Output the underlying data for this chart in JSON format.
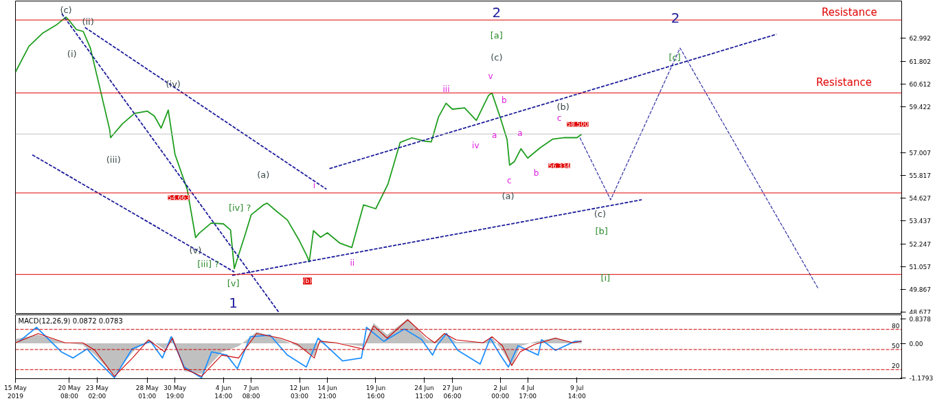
{
  "chart_data": [
    {
      "type": "line",
      "xlim": [
        "2019-05-15T00:00",
        "2019-08-10T17:30"
      ],
      "ylim": [
        48.6,
        64.95
      ],
      "tick_labels": "y",
      "grid": false,
      "yticks": [
        62.992,
        61.802,
        60.612,
        59.422,
        57.007,
        55.817,
        54.627,
        53.437,
        52.247,
        51.057,
        49.867,
        48.677
      ],
      "series": [
        {
          "color": "#1f9e1f",
          "x": [
            "2019-05-15T00:00",
            "2019-05-16T08:00",
            "2019-05-17T16:00",
            "2019-05-19T00:00",
            "2019-05-20T00:00",
            "2019-05-20T08:00",
            "2019-05-21T01:00",
            "2019-05-21T17:00",
            "2019-05-22T10:00",
            "2019-05-23T02:00",
            "2019-05-24T08:00",
            "2019-05-24T10:00",
            "2019-05-25T14:00",
            "2019-05-26T19:00",
            "2019-05-28T01:00",
            "2019-05-28T18:00",
            "2019-05-29T10:00",
            "2019-05-30T03:00",
            "2019-05-30T19:00",
            "2019-06-01T00:00",
            "2019-06-01T20:00",
            "2019-06-02T05:00",
            "2019-06-03T09:00",
            "2019-06-04T14:00",
            "2019-06-05T07:00",
            "2019-06-05T16:00",
            "2019-06-05T23:00",
            "2019-06-06T16:00",
            "2019-06-07T08:00",
            "2019-06-08T13:00",
            "2019-06-08T22:00",
            "2019-06-09T18:00",
            "2019-06-10T22:00",
            "2019-06-12T03:00",
            "2019-06-12T20:00",
            "2019-06-13T02:00",
            "2019-06-13T12:00",
            "2019-06-14T05:00",
            "2019-06-14T21:00",
            "2019-06-16T02:00",
            "2019-06-17T07:00",
            "2019-06-18T11:00",
            "2019-06-19T16:00",
            "2019-06-20T21:00",
            "2019-06-22T02:00",
            "2019-06-23T06:00",
            "2019-06-24T11:00",
            "2019-06-25T04:00",
            "2019-06-25T21:00",
            "2019-06-26T15:00",
            "2019-06-27T06:00",
            "2019-06-28T11:00",
            "2019-06-29T15:00",
            "2019-06-30T20:00",
            "2019-07-01T04:00",
            "2019-07-02T00:00",
            "2019-07-02T16:00",
            "2019-07-02T22:00",
            "2019-07-03T09:00",
            "2019-07-04T01:00",
            "2019-07-04T17:00",
            "2019-07-05T22:00",
            "2019-07-07T04:00",
            "2019-07-08T09:00",
            "2019-07-09T14:00",
            "2019-07-10T01:00"
          ],
          "values": [
            61.23,
            62.58,
            63.26,
            63.68,
            64.11,
            63.92,
            63.45,
            63.36,
            62.49,
            61.01,
            58.2,
            57.8,
            58.52,
            59.07,
            59.19,
            58.93,
            58.3,
            59.24,
            56.93,
            55.1,
            52.57,
            52.81,
            53.33,
            53.29,
            52.97,
            50.95,
            51.45,
            52.61,
            53.76,
            54.28,
            54.37,
            53.99,
            53.49,
            52.39,
            51.63,
            51.31,
            52.93,
            52.59,
            52.82,
            52.29,
            52.05,
            54.28,
            54.08,
            55.37,
            57.55,
            57.79,
            57.62,
            57.58,
            58.88,
            59.6,
            59.29,
            59.36,
            58.7,
            60.01,
            60.14,
            58.84,
            57.7,
            56.36,
            56.54,
            57.22,
            56.73,
            57.26,
            57.72,
            57.8,
            57.8,
            57.98
          ]
        },
        {
          "color": "#1c1c9c",
          "line_style": "dashed",
          "x": [
            "2019-05-19T14:00",
            "2019-06-10T01:00"
          ],
          "values": [
            64.29,
            48.68
          ]
        },
        {
          "color": "#1c1c9c",
          "line_style": "dashed",
          "x": [
            "2019-05-21T21:00",
            "2019-06-14T19:00"
          ],
          "values": [
            63.57,
            55.1
          ]
        },
        {
          "color": "#1c1c9c",
          "line_style": "dashed",
          "x": [
            "2019-05-16T16:00",
            "2019-06-05T16:00"
          ],
          "values": [
            56.9,
            50.77
          ]
        },
        {
          "color": "#1c1c9c",
          "line_style": "dashed",
          "x": [
            "2019-06-05T11:00",
            "2019-07-16T00:00"
          ],
          "values": [
            50.59,
            54.55
          ]
        },
        {
          "color": "#1c1c9c",
          "line_style": "dashed",
          "x": [
            "2019-06-15T02:00",
            "2019-07-29T08:00"
          ],
          "values": [
            56.18,
            63.21
          ]
        },
        {
          "color": "#1c1c9c",
          "line_style": "dashed",
          "x": [
            "2019-07-09T21:00",
            "2019-07-12T22:00",
            "2019-07-19T19:00",
            "2019-08-02T12:00"
          ],
          "values": [
            57.8,
            54.55,
            62.49,
            49.87
          ]
        }
      ],
      "ref_lines": [
        {
          "axis": "y",
          "value": 63.957,
          "color": "#e00000"
        },
        {
          "axis": "y",
          "value": 60.143,
          "color": "#e00000"
        },
        {
          "axis": "y",
          "value": 57.991,
          "color": "#c0c0c0"
        },
        {
          "axis": "y",
          "value": 54.908,
          "color": "#e00000"
        },
        {
          "axis": "y",
          "value": 50.641,
          "color": "#e00000"
        }
      ],
      "annotations": [
        "(c)",
        "(i)",
        "(ii)",
        "(iii)",
        "(iv)",
        "54.663",
        "(v)",
        "[iii] ?",
        "[iv] ?",
        "[v]",
        "1",
        "(a)",
        "(b)",
        "i",
        "ii",
        "iii",
        "iv",
        "v",
        "a",
        "b",
        "c",
        "(a)",
        "a",
        "b",
        "56.334",
        "c",
        "(b)",
        "58.500",
        "(c)",
        "[b]",
        "[i]",
        "2",
        "[a]",
        "(c)",
        "2",
        "[c]",
        "Resistance",
        "Resistance"
      ]
    },
    {
      "type": "line",
      "title": "MACD(12,26,9) 0.0872 0.0783",
      "xlim": [
        "2019-05-15T00:00",
        "2019-08-10T17:30"
      ],
      "ylim": [
        -1.21,
        0.98
      ],
      "grid": false,
      "xticks": [
        {
          "value": "2019-05-15T00:00",
          "label": "15 May 2019"
        },
        {
          "value": "2019-05-20T08:00",
          "label": "20 May 08:00"
        },
        {
          "value": "2019-05-23T02:00",
          "label": "23 May 02:00"
        },
        {
          "value": "2019-05-28T01:00",
          "label": "28 May 01:00"
        },
        {
          "value": "2019-05-30T19:00",
          "label": "30 May 19:00"
        },
        {
          "value": "2019-06-04T14:00",
          "label": "4 Jun 14:00"
        },
        {
          "value": "2019-06-07T08:00",
          "label": "7 Jun 08:00"
        },
        {
          "value": "2019-06-12T03:00",
          "label": "12 Jun 03:00"
        },
        {
          "value": "2019-06-14T21:00",
          "label": "14 Jun 21:00"
        },
        {
          "value": "2019-06-19T16:00",
          "label": "19 Jun 16:00"
        },
        {
          "value": "2019-06-24T11:00",
          "label": "24 Jun 11:00"
        },
        {
          "value": "2019-06-27T06:00",
          "label": "27 Jun 06:00"
        },
        {
          "value": "2019-07-02T00:00",
          "label": "2 Jul 00:00"
        },
        {
          "value": "2019-07-04T17:00",
          "label": "4 Jul 17:00"
        },
        {
          "value": "2019-07-09T14:00",
          "label": "9 Jul 14:00"
        }
      ],
      "yticks": [
        {
          "value": 0.8378,
          "label": "0.8378"
        },
        {
          "value": 0,
          "label": "0.00"
        },
        {
          "value": -1.1793,
          "label": "-1.1793"
        }
      ],
      "series": [
        {
          "type": "area",
          "color": "#c0c0c0",
          "x": [
            "2019-05-15T00:00",
            "2019-05-17T06:00",
            "2019-05-19T22:00",
            "2019-05-21T16:00",
            "2019-05-22T21:00",
            "2019-05-24T19:00",
            "2019-05-26T14:00",
            "2019-05-28T04:00",
            "2019-05-29T18:00",
            "2019-05-30T13:00",
            "2019-05-31T17:00",
            "2019-06-02T10:00",
            "2019-06-04T10:00",
            "2019-06-06T02:00",
            "2019-06-07T21:00",
            "2019-06-10T06:00",
            "2019-06-11T22:00",
            "2019-06-13T14:00",
            "2019-06-14T03:00",
            "2019-06-15T17:00",
            "2019-06-18T10:00",
            "2019-06-19T11:00",
            "2019-06-20T19:00",
            "2019-06-22T20:00",
            "2019-06-24T16:00",
            "2019-06-25T12:00",
            "2019-06-26T11:00",
            "2019-06-27T15:00",
            "2019-06-30T07:00",
            "2019-07-01T04:00",
            "2019-07-02T05:00",
            "2019-07-03T03:00",
            "2019-07-03T23:00",
            "2019-07-05T09:00",
            "2019-07-07T11:00",
            "2019-07-09T05:00",
            "2019-07-10T01:00"
          ],
          "values": [
            0.15,
            0.3,
            0.02,
            -0.05,
            -0.4,
            -1.1,
            -0.3,
            0.14,
            -0.2,
            0.25,
            -0.95,
            -1.05,
            -0.3,
            -0.1,
            0.4,
            0.15,
            -0.1,
            -0.45,
            0.1,
            0.02,
            -0.1,
            0.7,
            0.3,
            0.85,
            0.15,
            0.05,
            0.35,
            0.05,
            0.05,
            0.2,
            -0.25,
            -0.8,
            -0.1,
            0.05,
            0.2,
            0.02,
            0.09
          ]
        },
        {
          "color": "#1e90ff",
          "x": [
            "2019-05-15T09:00",
            "2019-05-17T02:00",
            "2019-05-19T13:00",
            "2019-05-20T17:00",
            "2019-05-22T02:00",
            "2019-05-22T21:00",
            "2019-05-24T19:00",
            "2019-05-26T13:00",
            "2019-05-28T09:00",
            "2019-05-29T13:00",
            "2019-05-30T10:00",
            "2019-05-31T17:00",
            "2019-06-02T10:00",
            "2019-06-03T10:00",
            "2019-06-04T22:00",
            "2019-06-05T23:00",
            "2019-06-07T06:00",
            "2019-06-09T05:00",
            "2019-06-10T22:00",
            "2019-06-12T19:00",
            "2019-06-13T23:00",
            "2019-06-16T09:00",
            "2019-06-18T06:00",
            "2019-06-18T18:00",
            "2019-06-20T11:00",
            "2019-06-22T12:00",
            "2019-06-24T05:00",
            "2019-06-25T07:00",
            "2019-06-25T17:00",
            "2019-06-26T16:00",
            "2019-06-27T19:00",
            "2019-06-30T00:00",
            "2019-07-01T00:00",
            "2019-07-02T00:00",
            "2019-07-02T19:00",
            "2019-07-03T18:00",
            "2019-07-05T18:00",
            "2019-07-06T02:00",
            "2019-07-07T11:00",
            "2019-07-09T09:00",
            "2019-07-10T01:00"
          ],
          "values": [
            0.07,
            0.55,
            -0.29,
            -0.5,
            -0.19,
            -0.5,
            -1.18,
            -0.19,
            0.07,
            -0.5,
            0.23,
            -0.81,
            -1.18,
            -0.29,
            -0.4,
            -0.87,
            0.23,
            0.28,
            -0.4,
            -0.81,
            0.18,
            -0.6,
            -0.5,
            0.55,
            0.07,
            0.49,
            0.13,
            -0.4,
            -0.08,
            0.34,
            -0.24,
            -0.71,
            0.18,
            -0.4,
            -0.81,
            -0.08,
            -0.4,
            0.13,
            -0.24,
            0.07,
            0.07
          ]
        },
        {
          "color": "#cc0000",
          "x": [
            "2019-05-15T00:00",
            "2019-05-17T06:00",
            "2019-05-19T22:00",
            "2019-05-21T16:00",
            "2019-05-22T21:00",
            "2019-05-24T19:00",
            "2019-05-26T14:00",
            "2019-05-28T04:00",
            "2019-05-29T18:00",
            "2019-05-30T13:00",
            "2019-05-31T17:00",
            "2019-06-02T10:00",
            "2019-06-04T10:00",
            "2019-06-06T02:00",
            "2019-06-07T21:00",
            "2019-06-10T06:00",
            "2019-06-11T22:00",
            "2019-06-13T14:00",
            "2019-06-14T03:00",
            "2019-06-15T17:00",
            "2019-06-18T10:00",
            "2019-06-19T11:00",
            "2019-06-20T19:00",
            "2019-06-22T20:00",
            "2019-06-24T16:00",
            "2019-06-25T12:00",
            "2019-06-26T11:00",
            "2019-06-27T15:00",
            "2019-06-30T07:00",
            "2019-07-01T04:00",
            "2019-07-02T05:00",
            "2019-07-03T03:00",
            "2019-07-03T23:00",
            "2019-07-05T09:00",
            "2019-07-07T11:00",
            "2019-07-09T05:00",
            "2019-07-10T01:00"
          ],
          "values": [
            0.02,
            0.34,
            0.02,
            0.02,
            -0.24,
            -1.13,
            -0.5,
            0.12,
            -0.29,
            0.18,
            -0.86,
            -1.13,
            -0.4,
            -0.5,
            0.34,
            0.18,
            -0.03,
            -0.5,
            0.08,
            0.02,
            -0.19,
            0.6,
            0.18,
            0.81,
            0.23,
            0.02,
            0.34,
            0.12,
            0.02,
            0.23,
            -0.08,
            -0.76,
            -0.29,
            -0.04,
            0.18,
            0.02,
            0.08
          ]
        }
      ],
      "ref_lines": [
        {
          "axis": "y",
          "value": 0.48,
          "color": "#cc0000",
          "line_style": "dashed"
        },
        {
          "axis": "y",
          "value": -0.21,
          "color": "#cc0000",
          "line_style": "dashed"
        },
        {
          "axis": "y",
          "value": -0.9,
          "color": "#cc0000",
          "line_style": "dashed"
        }
      ],
      "annotations": [
        "80",
        "50",
        "20"
      ]
    }
  ]
}
